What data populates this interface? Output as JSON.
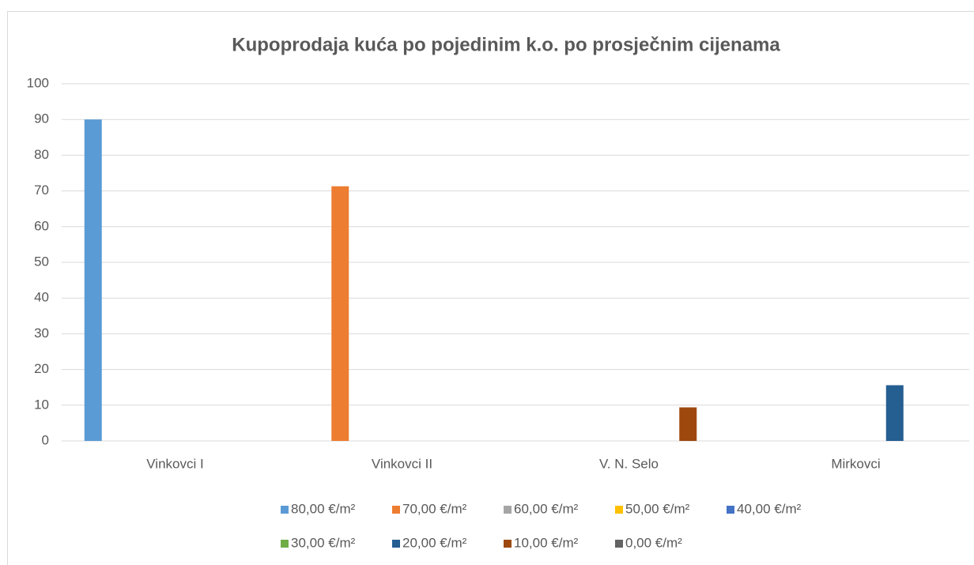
{
  "chart_data": {
    "type": "bar",
    "title": "Kupoprodaja kuća po pojedinim k.o. po prosječnim cijenama",
    "categories": [
      "Vinkovci I",
      "Vinkovci II",
      "V. N. Selo",
      "Mirkovci"
    ],
    "series": [
      {
        "name": "80,00 €/m²",
        "color": "#5b9bd5",
        "values": [
          90,
          0,
          0,
          0
        ]
      },
      {
        "name": "70,00  €/m²",
        "color": "#ed7d31",
        "values": [
          0,
          71.3,
          0,
          0
        ]
      },
      {
        "name": "60,00 €/m²",
        "color": "#a5a5a5",
        "values": [
          0,
          0,
          0,
          0
        ]
      },
      {
        "name": "50,00 €/m²",
        "color": "#ffc000",
        "values": [
          0,
          0,
          0,
          0
        ]
      },
      {
        "name": "40,00 €/m²",
        "color": "#4472c4",
        "values": [
          0,
          0,
          0,
          0
        ]
      },
      {
        "name": "30,00 €/m²",
        "color": "#70ad47",
        "values": [
          0,
          0,
          0,
          0
        ]
      },
      {
        "name": "20,00 €/m²",
        "color": "#255e91",
        "values": [
          0,
          0,
          0,
          15.6
        ]
      },
      {
        "name": "10,00 €/m²",
        "color": "#9e480e",
        "values": [
          0,
          0,
          9.4,
          0
        ]
      },
      {
        "name": "0,00 €/m²",
        "color": "#636363",
        "values": [
          0,
          0,
          0,
          0
        ]
      }
    ],
    "ylim": [
      0,
      100
    ],
    "yticks": [
      0,
      10,
      20,
      30,
      40,
      50,
      60,
      70,
      80,
      90,
      100
    ],
    "grid": true,
    "legend": "bottom"
  }
}
